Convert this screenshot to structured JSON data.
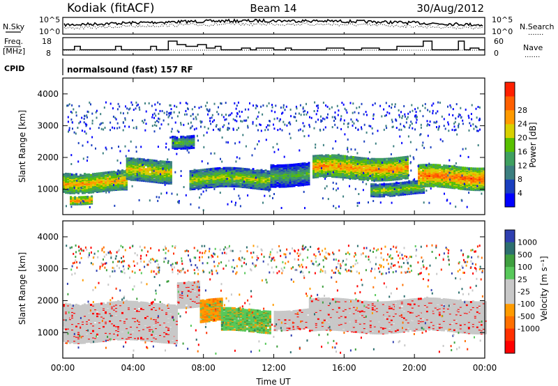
{
  "header": {
    "station": "Kodiak (fitACF)",
    "beam": "Beam 14",
    "date": "30/Aug/2012"
  },
  "labels": {
    "nsky": "N.Sky",
    "nsearch": "N.Search",
    "freq": "Freq.",
    "freq_unit": "[MHz]",
    "nave": "Nave",
    "cpid": "CPID",
    "cpid_value": "normalsound (fast) 157 RF",
    "dots": "......."
  },
  "colors": {
    "power": [
      "#0000ff",
      "#1a3fbf",
      "#3c7f80",
      "#3fa060",
      "#58c000",
      "#d8d000",
      "#ff9a00",
      "#ff6000",
      "#ff2000"
    ],
    "velocity": [
      "#2f3fb0",
      "#2d6f6f",
      "#3f9f3f",
      "#58c85a",
      "#c8c8c8",
      "#c8c8c8",
      "#ff9b00",
      "#ff7000",
      "#ff3000",
      "#ff0000"
    ],
    "ground": "#c8c8c8"
  },
  "chart_data": [
    {
      "type": "line",
      "name": "noise",
      "left_ticks": [
        "10^5",
        "10^0"
      ],
      "right_ticks": [
        "10^5",
        "10^0"
      ],
      "series": [
        {
          "name": "N.Sky",
          "style": "solid",
          "level_approx": 0.45
        },
        {
          "name": "N.Search",
          "style": "dotted",
          "level_approx": 0.65
        }
      ]
    },
    {
      "type": "line",
      "name": "frequency-nave",
      "left_ticks": [
        "18",
        "8"
      ],
      "right_ticks": [
        "60",
        "0"
      ],
      "series": [
        {
          "name": "Freq.",
          "unit": "MHz",
          "style": "solid",
          "x": [
            "00:00",
            "00:40",
            "01:00",
            "03:00",
            "03:20",
            "05:00",
            "05:20",
            "06:00",
            "06:30",
            "07:00",
            "07:40",
            "08:10",
            "08:40",
            "09:00",
            "10:10",
            "10:40",
            "11:00",
            "12:00",
            "12:40",
            "13:00",
            "14:00",
            "15:00",
            "16:00",
            "17:00",
            "18:00",
            "19:00",
            "20:30",
            "21:00",
            "22:30",
            "22:50",
            "23:10",
            "23:40"
          ],
          "values": [
            11,
            13,
            11,
            13,
            11,
            13,
            11,
            16,
            14,
            13,
            14,
            12,
            13,
            11,
            12,
            11,
            12,
            11,
            12,
            11,
            11,
            12,
            11,
            12,
            11,
            13,
            16,
            11,
            16,
            11,
            12,
            11
          ]
        },
        {
          "name": "Nave",
          "style": "dotted",
          "level_approx": 10
        }
      ]
    },
    {
      "type": "heatmap",
      "name": "power",
      "xlabel": "",
      "ylabel": "Slant Range [km]",
      "x_ticks": [
        "00:00",
        "04:00",
        "08:00",
        "12:00",
        "16:00",
        "20:00",
        "00:00"
      ],
      "y_ticks": [
        1000,
        2000,
        3000,
        4000
      ],
      "ylim": [
        200,
        4500
      ],
      "colorbar_label": "Power [dB]",
      "colorbar_ticks": [
        4,
        8,
        12,
        16,
        20,
        24,
        28
      ],
      "echo_bands": [
        {
          "from_h": 0.0,
          "to_h": 3.6,
          "range_km": [
            900,
            1500
          ],
          "power_db": 21
        },
        {
          "from_h": 0.4,
          "to_h": 1.6,
          "range_km": [
            550,
            800
          ],
          "power_db": 23
        },
        {
          "from_h": 3.6,
          "to_h": 6.2,
          "range_km": [
            1200,
            1900
          ],
          "power_db": 19
        },
        {
          "from_h": 6.2,
          "to_h": 7.4,
          "range_km": [
            2300,
            2700
          ],
          "power_db": 14
        },
        {
          "from_h": 7.2,
          "to_h": 11.8,
          "range_km": [
            1000,
            1600
          ],
          "power_db": 17
        },
        {
          "from_h": 11.8,
          "to_h": 14.0,
          "range_km": [
            1100,
            1800
          ],
          "power_db": 13
        },
        {
          "from_h": 14.2,
          "to_h": 19.6,
          "range_km": [
            1300,
            2000
          ],
          "power_db": 22
        },
        {
          "from_h": 17.5,
          "to_h": 20.5,
          "range_km": [
            800,
            1200
          ],
          "power_db": 16
        },
        {
          "from_h": 20.2,
          "to_h": 24.0,
          "range_km": [
            1000,
            1700
          ],
          "power_db": 24
        }
      ]
    },
    {
      "type": "heatmap",
      "name": "velocity",
      "xlabel": "Time UT",
      "ylabel": "Slant Range [km]",
      "x_ticks": [
        "00:00",
        "04:00",
        "08:00",
        "12:00",
        "16:00",
        "20:00",
        "00:00"
      ],
      "y_ticks": [
        1000,
        2000,
        3000,
        4000
      ],
      "ylim": [
        200,
        4500
      ],
      "colorbar_label": "Velocity [m s⁻¹]",
      "colorbar_ticks": [
        1000,
        500,
        100,
        25,
        -25,
        -100,
        -500,
        -1000
      ],
      "echo_bands": [
        {
          "from_h": 0.0,
          "to_h": 6.5,
          "range_km": [
            700,
            1900
          ],
          "velocity": 0,
          "ground": true
        },
        {
          "from_h": 6.5,
          "to_h": 7.8,
          "range_km": [
            1800,
            2600
          ],
          "velocity": 0,
          "ground": true
        },
        {
          "from_h": 7.8,
          "to_h": 9.0,
          "range_km": [
            1300,
            2000
          ],
          "velocity": -300
        },
        {
          "from_h": 9.0,
          "to_h": 11.8,
          "range_km": [
            1000,
            1700
          ],
          "velocity": 150
        },
        {
          "from_h": 12.0,
          "to_h": 14.0,
          "range_km": [
            1100,
            1700
          ],
          "velocity": 0,
          "ground": true
        },
        {
          "from_h": 14.0,
          "to_h": 24.0,
          "range_km": [
            1000,
            2000
          ],
          "velocity": 0,
          "ground": true
        }
      ]
    }
  ]
}
